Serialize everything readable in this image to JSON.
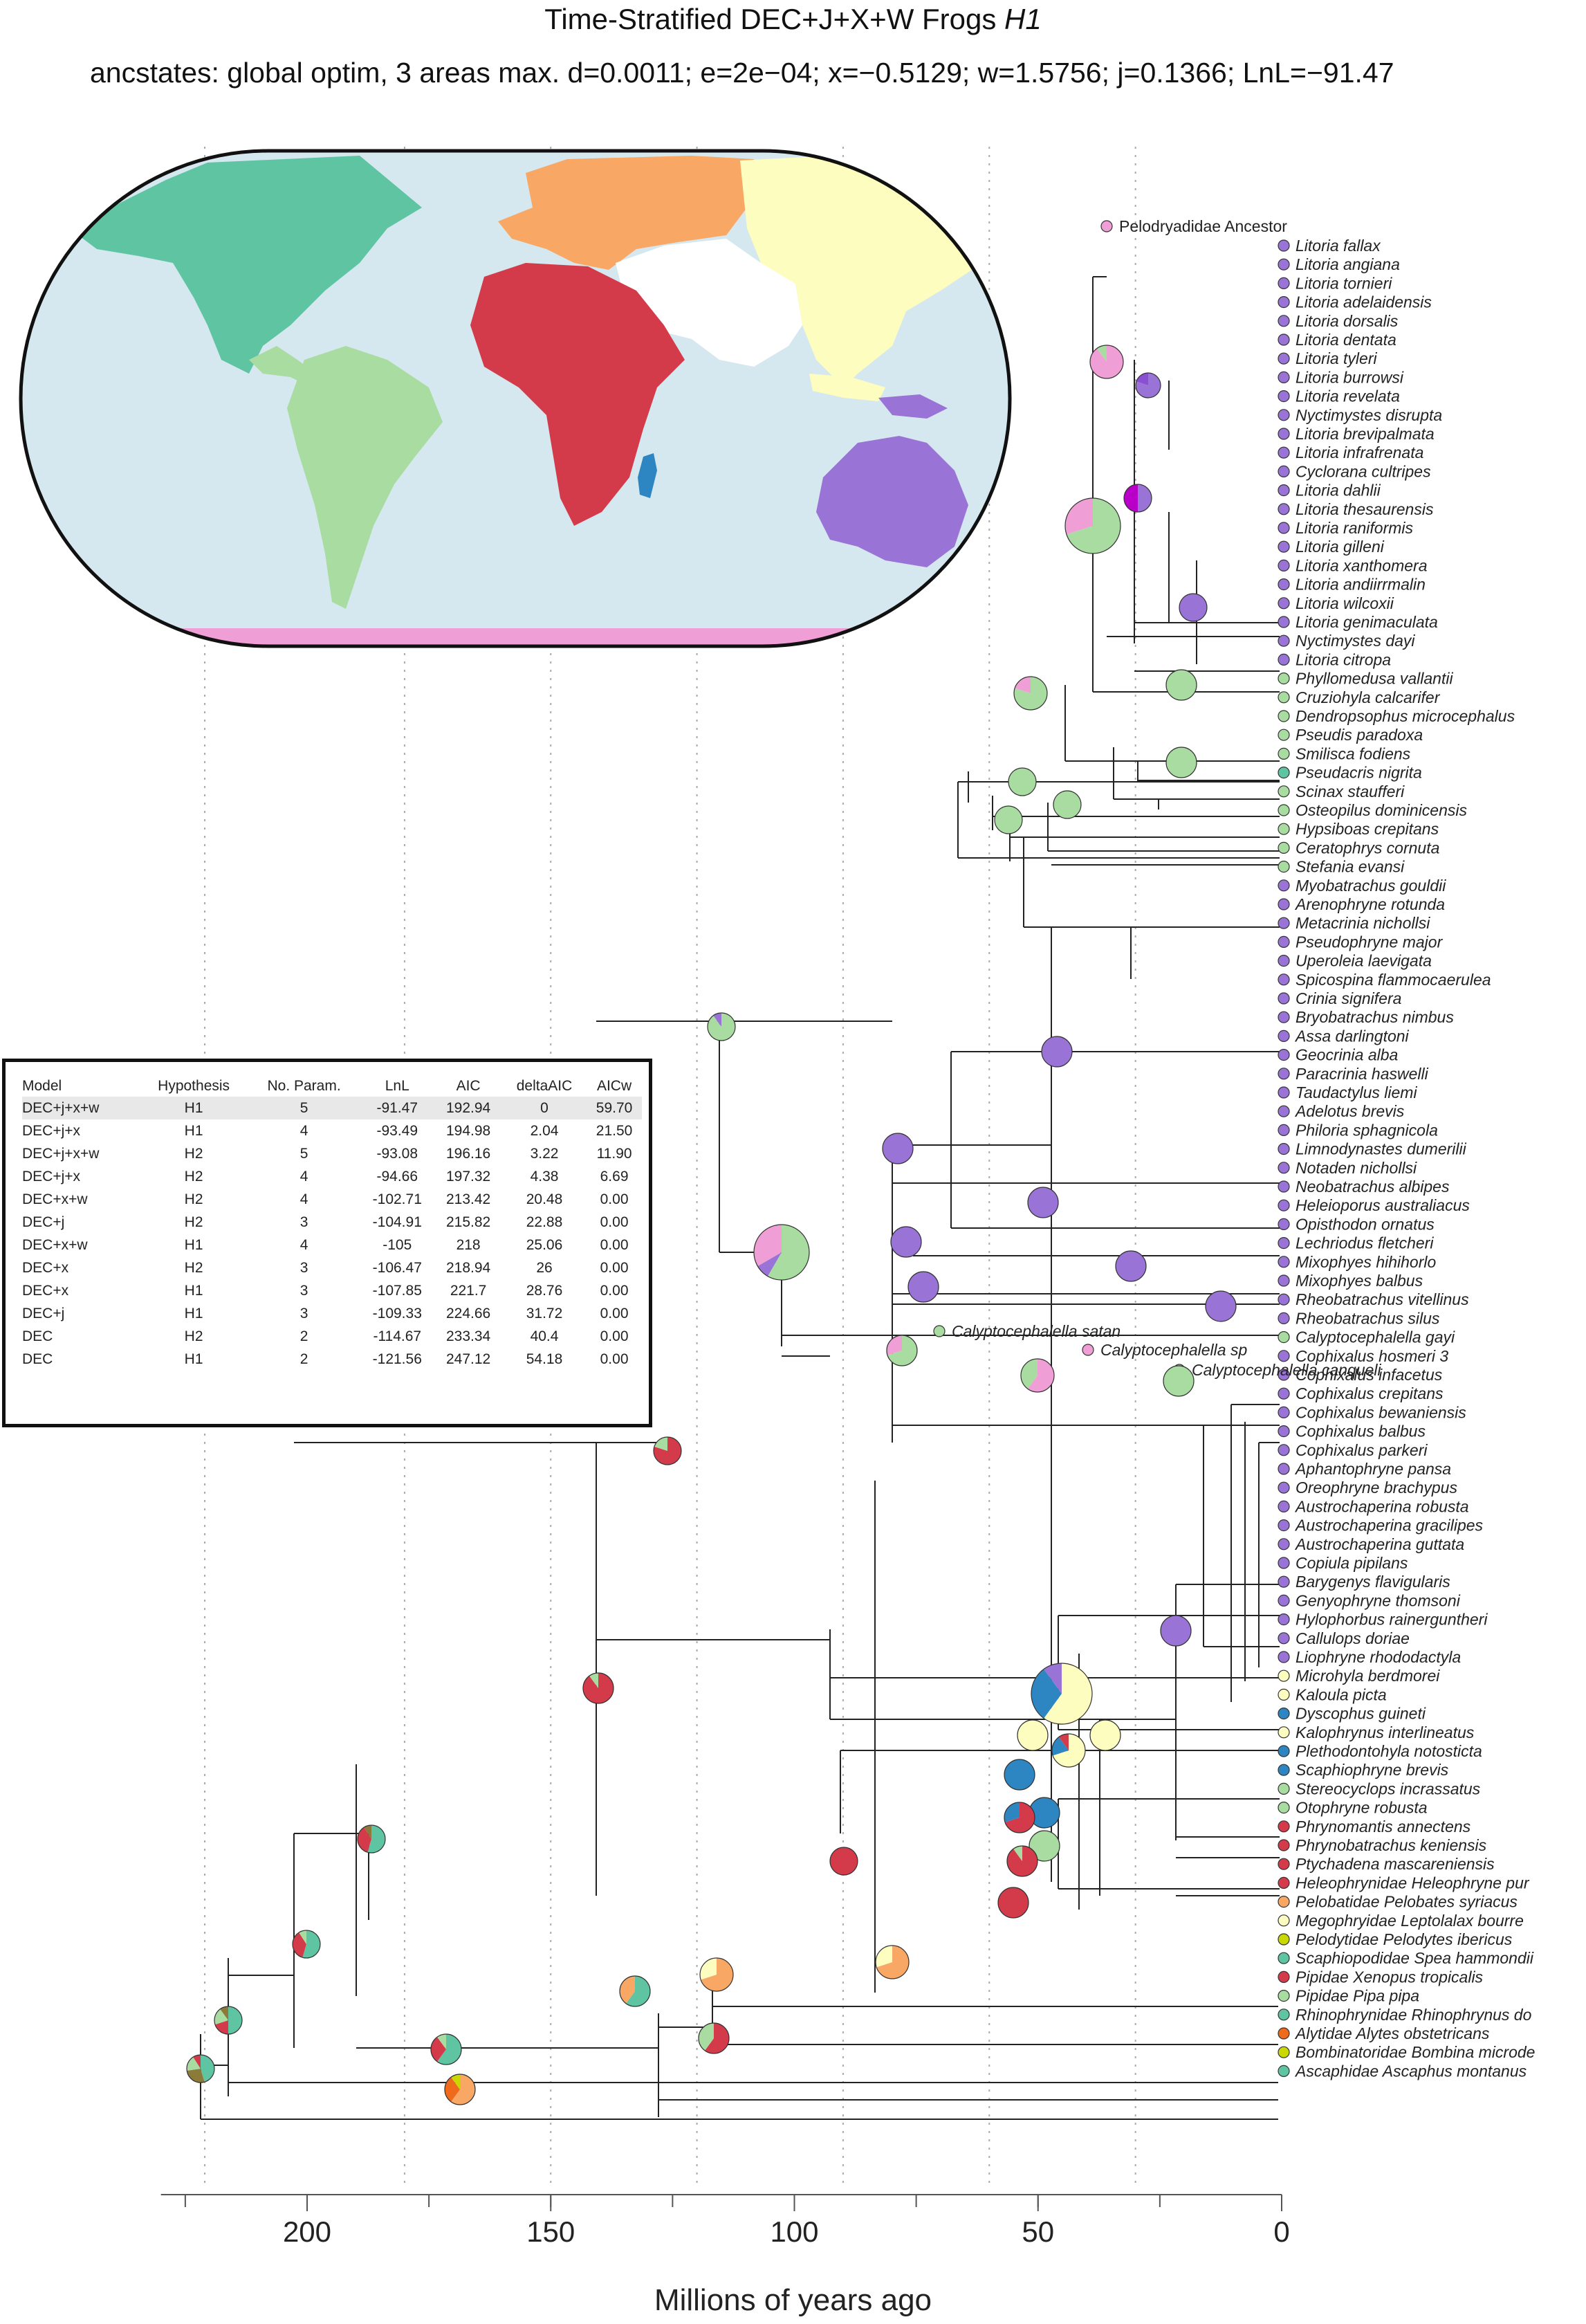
{
  "title": {
    "main": "Time-Stratified DEC+J+X+W Frogs",
    "hypothesis": "H1"
  },
  "subtitle": "ancstates: global optim, 3 areas max. d=0.0011; e=2e−04; x=−0.5129; w=1.5756; j=0.1366; LnL=−91.47",
  "colors": {
    "north_america": "#5fc4a2",
    "south_america": "#a8dca0",
    "africa": "#d43b4a",
    "madagascar": "#2d86c1",
    "europe": "#f9a764",
    "asia": "#fdfdbf",
    "australia": "#9a73d6",
    "antarctica": "#f09fd6",
    "ocean": "#d6e8ef",
    "purple_dark": "#8a50d4",
    "magenta": "#b800c8",
    "orange_dark": "#ef6a1b",
    "yellow_green": "#c8d800",
    "olive": "#8b7a3a"
  },
  "axis": {
    "label": "Millions of years ago",
    "ticks": [
      200,
      150,
      100,
      50,
      0
    ],
    "range": [
      230,
      0
    ],
    "stratum_lines_ma": [
      221,
      180,
      150,
      120,
      90,
      60,
      30
    ]
  },
  "table": {
    "headers": [
      "Model",
      "Hypothesis",
      "No. Param.",
      "LnL",
      "AIC",
      "deltaAIC",
      "AICw"
    ],
    "rows": [
      [
        "DEC+j+x+w",
        "H1",
        "5",
        "-91.47",
        "192.94",
        "0",
        "59.70"
      ],
      [
        "DEC+j+x",
        "H1",
        "4",
        "-93.49",
        "194.98",
        "2.04",
        "21.50"
      ],
      [
        "DEC+j+x+w",
        "H2",
        "5",
        "-93.08",
        "196.16",
        "3.22",
        "11.90"
      ],
      [
        "DEC+j+x",
        "H2",
        "4",
        "-94.66",
        "197.32",
        "4.38",
        "6.69"
      ],
      [
        "DEC+x+w",
        "H2",
        "4",
        "-102.71",
        "213.42",
        "20.48",
        "0.00"
      ],
      [
        "DEC+j",
        "H2",
        "3",
        "-104.91",
        "215.82",
        "22.88",
        "0.00"
      ],
      [
        "DEC+x+w",
        "H1",
        "4",
        "-105",
        "218",
        "25.06",
        "0.00"
      ],
      [
        "DEC+x",
        "H2",
        "3",
        "-106.47",
        "218.94",
        "26",
        "0.00"
      ],
      [
        "DEC+x",
        "H1",
        "3",
        "-107.85",
        "221.7",
        "28.76",
        "0.00"
      ],
      [
        "DEC+j",
        "H1",
        "3",
        "-109.33",
        "224.66",
        "31.72",
        "0.00"
      ],
      [
        "DEC",
        "H2",
        "2",
        "-114.67",
        "233.34",
        "40.4",
        "0.00"
      ],
      [
        "DEC",
        "H1",
        "2",
        "-121.56",
        "247.12",
        "54.18",
        "0.00"
      ]
    ]
  },
  "tips": [
    {
      "name": "Litoria fallax",
      "area": "australia"
    },
    {
      "name": "Litoria angiana",
      "area": "australia"
    },
    {
      "name": "Litoria tornieri",
      "area": "australia"
    },
    {
      "name": "Litoria adelaidensis",
      "area": "australia"
    },
    {
      "name": "Litoria dorsalis",
      "area": "australia"
    },
    {
      "name": "Litoria dentata",
      "area": "australia"
    },
    {
      "name": "Litoria tyleri",
      "area": "australia"
    },
    {
      "name": "Litoria burrowsi",
      "area": "australia"
    },
    {
      "name": "Litoria revelata",
      "area": "australia"
    },
    {
      "name": "Nyctimystes disrupta",
      "area": "australia"
    },
    {
      "name": "Litoria brevipalmata",
      "area": "australia"
    },
    {
      "name": "Litoria infrafrenata",
      "area": "australia"
    },
    {
      "name": "Cyclorana cultripes",
      "area": "australia"
    },
    {
      "name": "Litoria dahlii",
      "area": "australia"
    },
    {
      "name": "Litoria thesaurensis",
      "area": "australia"
    },
    {
      "name": "Litoria raniformis",
      "area": "australia"
    },
    {
      "name": "Litoria gilleni",
      "area": "australia"
    },
    {
      "name": "Litoria xanthomera",
      "area": "australia"
    },
    {
      "name": "Litoria andiirrmalin",
      "area": "australia"
    },
    {
      "name": "Litoria wilcoxii",
      "area": "australia"
    },
    {
      "name": "Litoria genimaculata",
      "area": "australia"
    },
    {
      "name": "Nyctimystes dayi",
      "area": "australia"
    },
    {
      "name": "Litoria citropa",
      "area": "australia"
    },
    {
      "name": "Phyllomedusa vallantii",
      "area": "south_america"
    },
    {
      "name": "Cruziohyla calcarifer",
      "area": "south_america"
    },
    {
      "name": "Dendropsophus microcephalus",
      "area": "south_america"
    },
    {
      "name": "Pseudis paradoxa",
      "area": "south_america"
    },
    {
      "name": "Smilisca fodiens",
      "area": "south_america"
    },
    {
      "name": "Pseudacris nigrita",
      "area": "north_america"
    },
    {
      "name": "Scinax staufferi",
      "area": "south_america"
    },
    {
      "name": "Osteopilus dominicensis",
      "area": "south_america"
    },
    {
      "name": "Hypsiboas crepitans",
      "area": "south_america"
    },
    {
      "name": "Ceratophrys cornuta",
      "area": "south_america"
    },
    {
      "name": "Stefania evansi",
      "area": "south_america"
    },
    {
      "name": "Myobatrachus gouldii",
      "area": "australia"
    },
    {
      "name": "Arenophryne rotunda",
      "area": "australia"
    },
    {
      "name": "Metacrinia nichollsi",
      "area": "australia"
    },
    {
      "name": "Pseudophryne major",
      "area": "australia"
    },
    {
      "name": "Uperoleia laevigata",
      "area": "australia"
    },
    {
      "name": "Spicospina flammocaerulea",
      "area": "australia"
    },
    {
      "name": "Crinia signifera",
      "area": "australia"
    },
    {
      "name": "Bryobatrachus nimbus",
      "area": "australia"
    },
    {
      "name": "Assa darlingtoni",
      "area": "australia"
    },
    {
      "name": "Geocrinia alba",
      "area": "australia"
    },
    {
      "name": "Paracrinia haswelli",
      "area": "australia"
    },
    {
      "name": "Taudactylus liemi",
      "area": "australia"
    },
    {
      "name": "Adelotus brevis",
      "area": "australia"
    },
    {
      "name": "Philoria sphagnicola",
      "area": "australia"
    },
    {
      "name": "Limnodynastes dumerilii",
      "area": "australia"
    },
    {
      "name": "Notaden nichollsi",
      "area": "australia"
    },
    {
      "name": "Neobatrachus albipes",
      "area": "australia"
    },
    {
      "name": "Heleioporus australiacus",
      "area": "australia"
    },
    {
      "name": "Opisthodon ornatus",
      "area": "australia"
    },
    {
      "name": "Lechriodus fletcheri",
      "area": "australia"
    },
    {
      "name": "Mixophyes hihihorlo",
      "area": "australia"
    },
    {
      "name": "Mixophyes balbus",
      "area": "australia"
    },
    {
      "name": "Rheobatrachus vitellinus",
      "area": "australia"
    },
    {
      "name": "Rheobatrachus silus",
      "area": "australia"
    },
    {
      "name": "Calyptocephalella gayi",
      "area": "south_america"
    },
    {
      "name": "Cophixalus hosmeri 3",
      "area": "australia"
    },
    {
      "name": "Cophixalus infacetus",
      "area": "australia"
    },
    {
      "name": "Cophixalus crepitans",
      "area": "australia"
    },
    {
      "name": "Cophixalus bewaniensis",
      "area": "australia"
    },
    {
      "name": "Cophixalus balbus",
      "area": "australia"
    },
    {
      "name": "Cophixalus parkeri",
      "area": "australia"
    },
    {
      "name": "Aphantophryne pansa",
      "area": "australia"
    },
    {
      "name": "Oreophryne brachypus",
      "area": "australia"
    },
    {
      "name": "Austrochaperina robusta",
      "area": "australia"
    },
    {
      "name": "Austrochaperina gracilipes",
      "area": "australia"
    },
    {
      "name": "Austrochaperina guttata",
      "area": "australia"
    },
    {
      "name": "Copiula pipilans",
      "area": "australia"
    },
    {
      "name": "Barygenys flavigularis",
      "area": "australia"
    },
    {
      "name": "Genyophryne thomsoni",
      "area": "australia"
    },
    {
      "name": "Hylophorbus rainerguntheri",
      "area": "australia"
    },
    {
      "name": "Callulops doriae",
      "area": "australia"
    },
    {
      "name": "Liophryne rhododactyla",
      "area": "australia"
    },
    {
      "name": "Microhyla berdmorei",
      "area": "asia"
    },
    {
      "name": "Kaloula picta",
      "area": "asia"
    },
    {
      "name": "Dyscophus guineti",
      "area": "madagascar"
    },
    {
      "name": "Kalophrynus interlineatus",
      "area": "asia"
    },
    {
      "name": "Plethodontohyla notosticta",
      "area": "madagascar"
    },
    {
      "name": "Scaphiophryne brevis",
      "area": "madagascar"
    },
    {
      "name": "Stereocyclops incrassatus",
      "area": "south_america"
    },
    {
      "name": "Otophryne robusta",
      "area": "south_america"
    },
    {
      "name": "Phrynomantis annectens",
      "area": "africa"
    },
    {
      "name": "Phrynobatrachus keniensis",
      "area": "africa"
    },
    {
      "name": "Ptychadena mascareniensis",
      "area": "africa"
    },
    {
      "name": "Heleophrynidae Heleophryne pur",
      "area": "africa"
    },
    {
      "name": "Pelobatidae Pelobates syriacus",
      "area": "europe"
    },
    {
      "name": "Megophryidae Leptolalax bourre",
      "area": "asia"
    },
    {
      "name": "Pelodytidae Pelodytes ibericus",
      "area": "yellow_green"
    },
    {
      "name": "Scaphiopodidae Spea hammondii",
      "area": "north_america"
    },
    {
      "name": "Pipidae Xenopus tropicalis",
      "area": "africa"
    },
    {
      "name": "Pipidae Pipa pipa",
      "area": "south_america"
    },
    {
      "name": "Rhinophrynidae Rhinophrynus do",
      "area": "north_america"
    },
    {
      "name": "Alytidae Alytes obstetricans",
      "area": "orange_dark"
    },
    {
      "name": "Bombinatoridae Bombina microde",
      "area": "yellow_green"
    },
    {
      "name": "Ascaphidae Ascaphus montanus",
      "area": "north_america"
    }
  ],
  "extra_labels": [
    {
      "name": "Pelodryadidae Ancestor",
      "area": "antarctica",
      "italic": false
    },
    {
      "name": "Calyptocephalella satan",
      "area": "south_america",
      "italic": true
    },
    {
      "name": "Calyptocephalella sp",
      "area": "antarctica",
      "italic": true
    },
    {
      "name": "Calyptocephalella canqueli",
      "area": "south_america",
      "italic": true
    }
  ]
}
